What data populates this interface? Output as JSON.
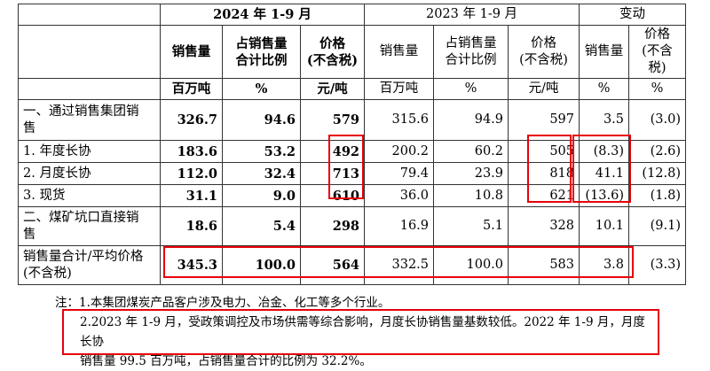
{
  "header": {
    "group_2024": "2024 年 1-9 月",
    "group_2023": "2023 年 1-9 月",
    "group_change": "变动",
    "col_2024": [
      "销售量",
      "占销售量\n合计比例",
      "价格\n(不含税)"
    ],
    "col_2023": [
      "销售量",
      "占销售量\n合计比例",
      "价格\n(不含税)"
    ],
    "col_change": [
      "销售量",
      "价格\n(不含税)"
    ],
    "units_2024": [
      "百万吨",
      "%",
      "元/吨"
    ],
    "units_2023": [
      "百万吨",
      "%",
      "元/吨"
    ],
    "units_change": [
      "%",
      "%"
    ]
  },
  "rows": [
    {
      "label": "一、通过销售集团销\n售",
      "v": [
        "326.7",
        "94.6",
        "579",
        "315.6",
        "94.9",
        "597",
        "3.5",
        "(3.0)"
      ]
    },
    {
      "label": "1. 年度长协",
      "v": [
        "183.6",
        "53.2",
        "492",
        "200.2",
        "60.2",
        "505",
        "(8.3)",
        "(2.6)"
      ]
    },
    {
      "label": "2. 月度长协",
      "v": [
        "112.0",
        "32.4",
        "713",
        "79.4",
        "23.9",
        "818",
        "41.1",
        "(12.8)"
      ]
    },
    {
      "label": "3. 现货",
      "v": [
        "31.1",
        "9.0",
        "610",
        "36.0",
        "10.8",
        "621",
        "(13.6)",
        "(1.8)"
      ]
    },
    {
      "label": "二、煤矿坑口直接销\n售",
      "v": [
        "18.6",
        "5.4",
        "298",
        "16.9",
        "5.1",
        "328",
        "10.1",
        "(9.1)"
      ]
    },
    {
      "label": "销售量合计/平均价格\n(不含税)",
      "v": [
        "345.3",
        "100.0",
        "564",
        "332.5",
        "100.0",
        "583",
        "3.8",
        "(3.3)"
      ]
    }
  ],
  "notes": {
    "note1": "注：1.本集团煤炭产品客户涉及电力、冶金、化工等多个行业。",
    "note2_line1": "2.2023 年 1-9 月，受政策调控及市场供需等综合影响，月度长协销售量基数较低。2022 年 1-9 月，月度长协",
    "note2_line2": "销售量 99.5 百万吨，占销售量合计的比例为 32.2%。"
  },
  "colors": {
    "highlight": "#e8000b"
  }
}
